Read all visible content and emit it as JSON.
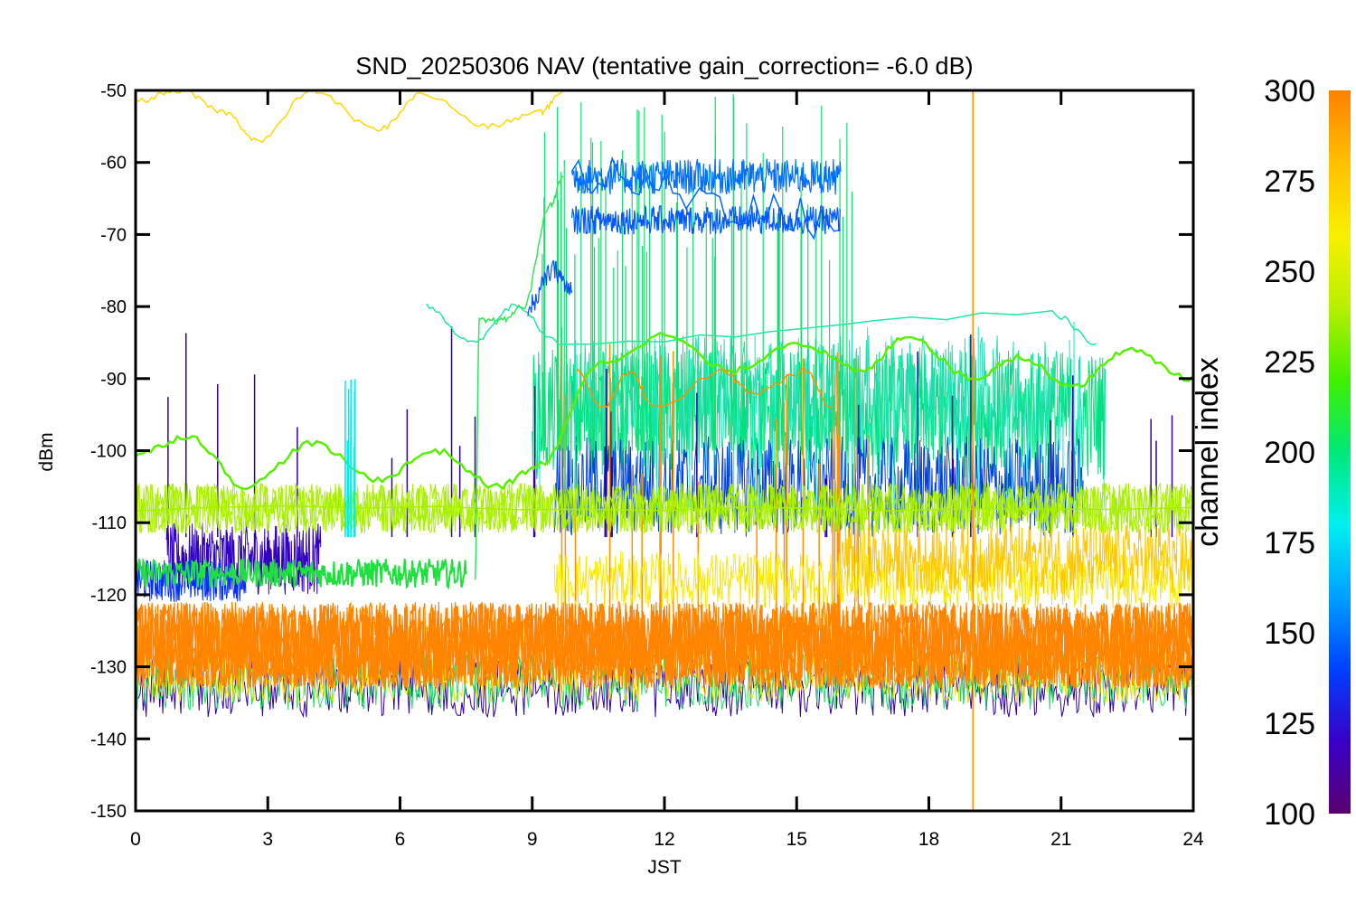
{
  "chart_data": {
    "type": "line",
    "title": "SND_20250306 NAV (tentative gain_correction= -6.0 dB)",
    "xlabel": "JST",
    "ylabel": "dBm",
    "xlim": [
      0,
      24
    ],
    "ylim": [
      -150,
      -50
    ],
    "xticks": [
      0,
      3,
      6,
      9,
      12,
      15,
      18,
      21,
      24
    ],
    "yticks": [
      -50,
      -60,
      -70,
      -80,
      -90,
      -100,
      -110,
      -120,
      -130,
      -140,
      -150
    ],
    "colorbar": {
      "label": "channel index",
      "range": [
        100,
        300
      ],
      "ticks": [
        100,
        125,
        150,
        175,
        200,
        225,
        250,
        275,
        300
      ],
      "colormap": [
        "#5a006e",
        "#3800c8",
        "#0040ff",
        "#00a0ff",
        "#00f0f0",
        "#00e878",
        "#40f000",
        "#b8f000",
        "#f8f000",
        "#ffc000",
        "#ff8000"
      ]
    },
    "series": [
      {
        "channel": 300,
        "color": "#ff8400",
        "description_points": [
          [
            0,
            -127
          ],
          [
            24,
            -127
          ]
        ],
        "band": 6
      },
      {
        "channel": 270,
        "color": "#ffd800",
        "points": [
          [
            0,
            -51.5
          ],
          [
            1,
            -50
          ],
          [
            2,
            -53
          ],
          [
            2.8,
            -57
          ],
          [
            4,
            -50
          ],
          [
            5.5,
            -55.5
          ],
          [
            6.5,
            -50.5
          ],
          [
            8,
            -55
          ],
          [
            9.2,
            -53
          ],
          [
            9.7,
            -50
          ]
        ]
      },
      {
        "channel": 245,
        "color": "#a8f000",
        "points": [
          [
            0,
            -108
          ],
          [
            24,
            -108
          ]
        ],
        "band": 4
      },
      {
        "channel": 235,
        "color": "#58f000",
        "points": [
          [
            0,
            -100.5
          ],
          [
            1.2,
            -98
          ],
          [
            2.5,
            -105
          ],
          [
            4,
            -99
          ],
          [
            5.5,
            -104
          ],
          [
            6.8,
            -100
          ],
          [
            8.2,
            -105
          ],
          [
            9.2,
            -102
          ],
          [
            10.5,
            -88
          ],
          [
            12,
            -84
          ],
          [
            13.5,
            -89
          ],
          [
            15,
            -85
          ],
          [
            16.5,
            -89
          ],
          [
            17.5,
            -84
          ],
          [
            19,
            -90
          ],
          [
            20,
            -87
          ],
          [
            21.3,
            -91
          ],
          [
            22.5,
            -86
          ],
          [
            24,
            -90
          ]
        ]
      },
      {
        "channel": 230,
        "color": "#30e858",
        "points": [
          [
            7.7,
            -118
          ],
          [
            7.8,
            -82
          ],
          [
            8.3,
            -82
          ],
          [
            8.8,
            -80
          ],
          [
            9.4,
            -66
          ],
          [
            9.7,
            -62
          ]
        ]
      },
      {
        "channel": 215,
        "color": "#20e8a0",
        "points": [
          [
            6.6,
            -80
          ],
          [
            7.6,
            -85
          ],
          [
            8.6,
            -80
          ],
          [
            9.6,
            -85
          ],
          [
            20.8,
            -81
          ],
          [
            21.8,
            -85
          ]
        ]
      },
      {
        "channel": 150,
        "color": "#0068ff",
        "points": [
          [
            9.9,
            -62
          ],
          [
            16,
            -68
          ]
        ]
      },
      {
        "channel": 290,
        "color": "#ff9000",
        "points": [
          [
            10,
            -89
          ],
          [
            10.6,
            -94
          ],
          [
            11.2,
            -89
          ],
          [
            11.8,
            -94
          ],
          [
            13.3,
            -89
          ],
          [
            14,
            -92
          ],
          [
            15.2,
            -89
          ],
          [
            15.8,
            -94
          ]
        ]
      }
    ]
  }
}
